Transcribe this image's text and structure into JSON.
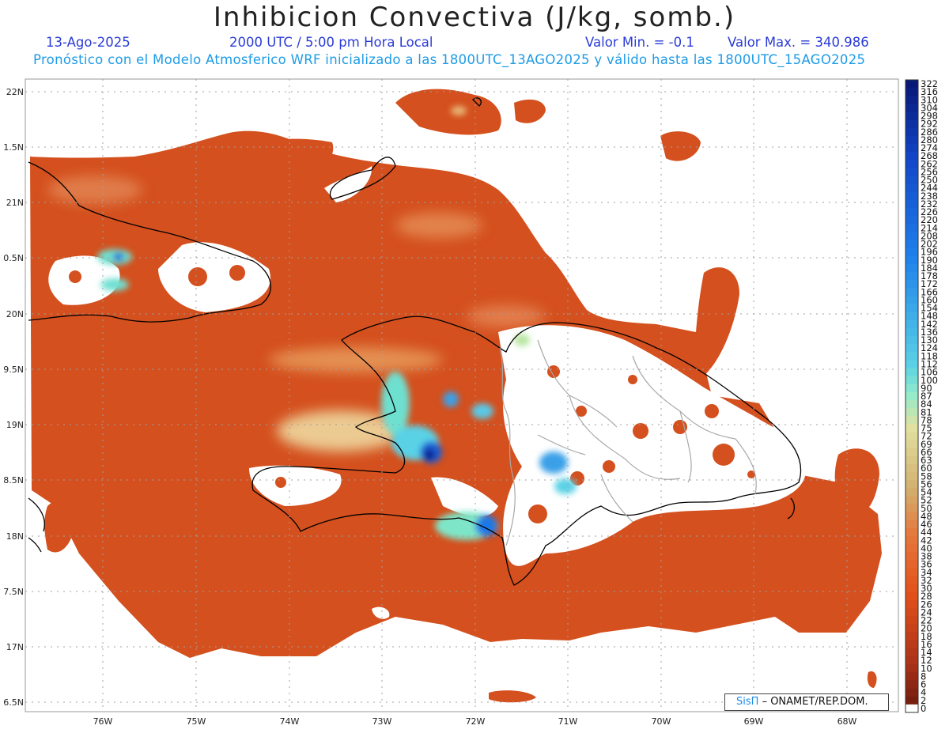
{
  "header": {
    "title": "Inhibicion Convectiva (J/kg, somb.)",
    "date": "13-Ago-2025",
    "time": "2000 UTC / 5:00 pm Hora Local",
    "valmin": "Valor Min. = -0.1",
    "valmax": "Valor Max. = 340.986",
    "subtitle": "Pronóstico con el Modelo Atmosferico WRF inicializado a las 1800UTC_13AGO2025 y válido hasta las  1800UTC_15AGO2025"
  },
  "axes": {
    "lat_labels": [
      "22N",
      "1.5N",
      "21N",
      "0.5N",
      "20N",
      "9.5N",
      "19N",
      "8.5N",
      "18N",
      "7.5N",
      "17N",
      "6.5N"
    ],
    "lon_labels": [
      "76W",
      "75W",
      "74W",
      "73W",
      "72W",
      "71W",
      "70W",
      "69W",
      "68W"
    ]
  },
  "colorbar": {
    "labels": [
      "322",
      "316",
      "310",
      "304",
      "298",
      "292",
      "286",
      "280",
      "274",
      "268",
      "262",
      "256",
      "250",
      "244",
      "238",
      "232",
      "226",
      "220",
      "214",
      "208",
      "202",
      "196",
      "190",
      "184",
      "178",
      "172",
      "166",
      "160",
      "154",
      "148",
      "142",
      "136",
      "130",
      "124",
      "118",
      "112",
      "106",
      "100",
      "90",
      "87",
      "84",
      "81",
      "78",
      "75",
      "72",
      "69",
      "66",
      "63",
      "60",
      "58",
      "56",
      "54",
      "52",
      "50",
      "48",
      "46",
      "44",
      "42",
      "40",
      "38",
      "36",
      "34",
      "32",
      "30",
      "28",
      "26",
      "24",
      "22",
      "20",
      "18",
      "16",
      "14",
      "12",
      "10",
      "8",
      "6",
      "4",
      "2",
      "0"
    ],
    "colors": {
      "high": "#0a1e8c",
      "mid_blue": "#1f78e6",
      "light_blue": "#5ad2e6",
      "cyan": "#6ee6c8",
      "cream": "#e8e6a8",
      "tan": "#d2b478",
      "orange": "#f06414",
      "red_brown": "#c03c1e",
      "dark": "#8c2814",
      "zero": "#ffffff"
    }
  },
  "map": {
    "field_color": "#d4501e",
    "ocean": "#ffffff",
    "coastline": "#000000",
    "borders": "#aaaaaa"
  },
  "credit": {
    "logo_text": "SisΠ",
    "label": "– ONAMET/REP.DOM."
  }
}
